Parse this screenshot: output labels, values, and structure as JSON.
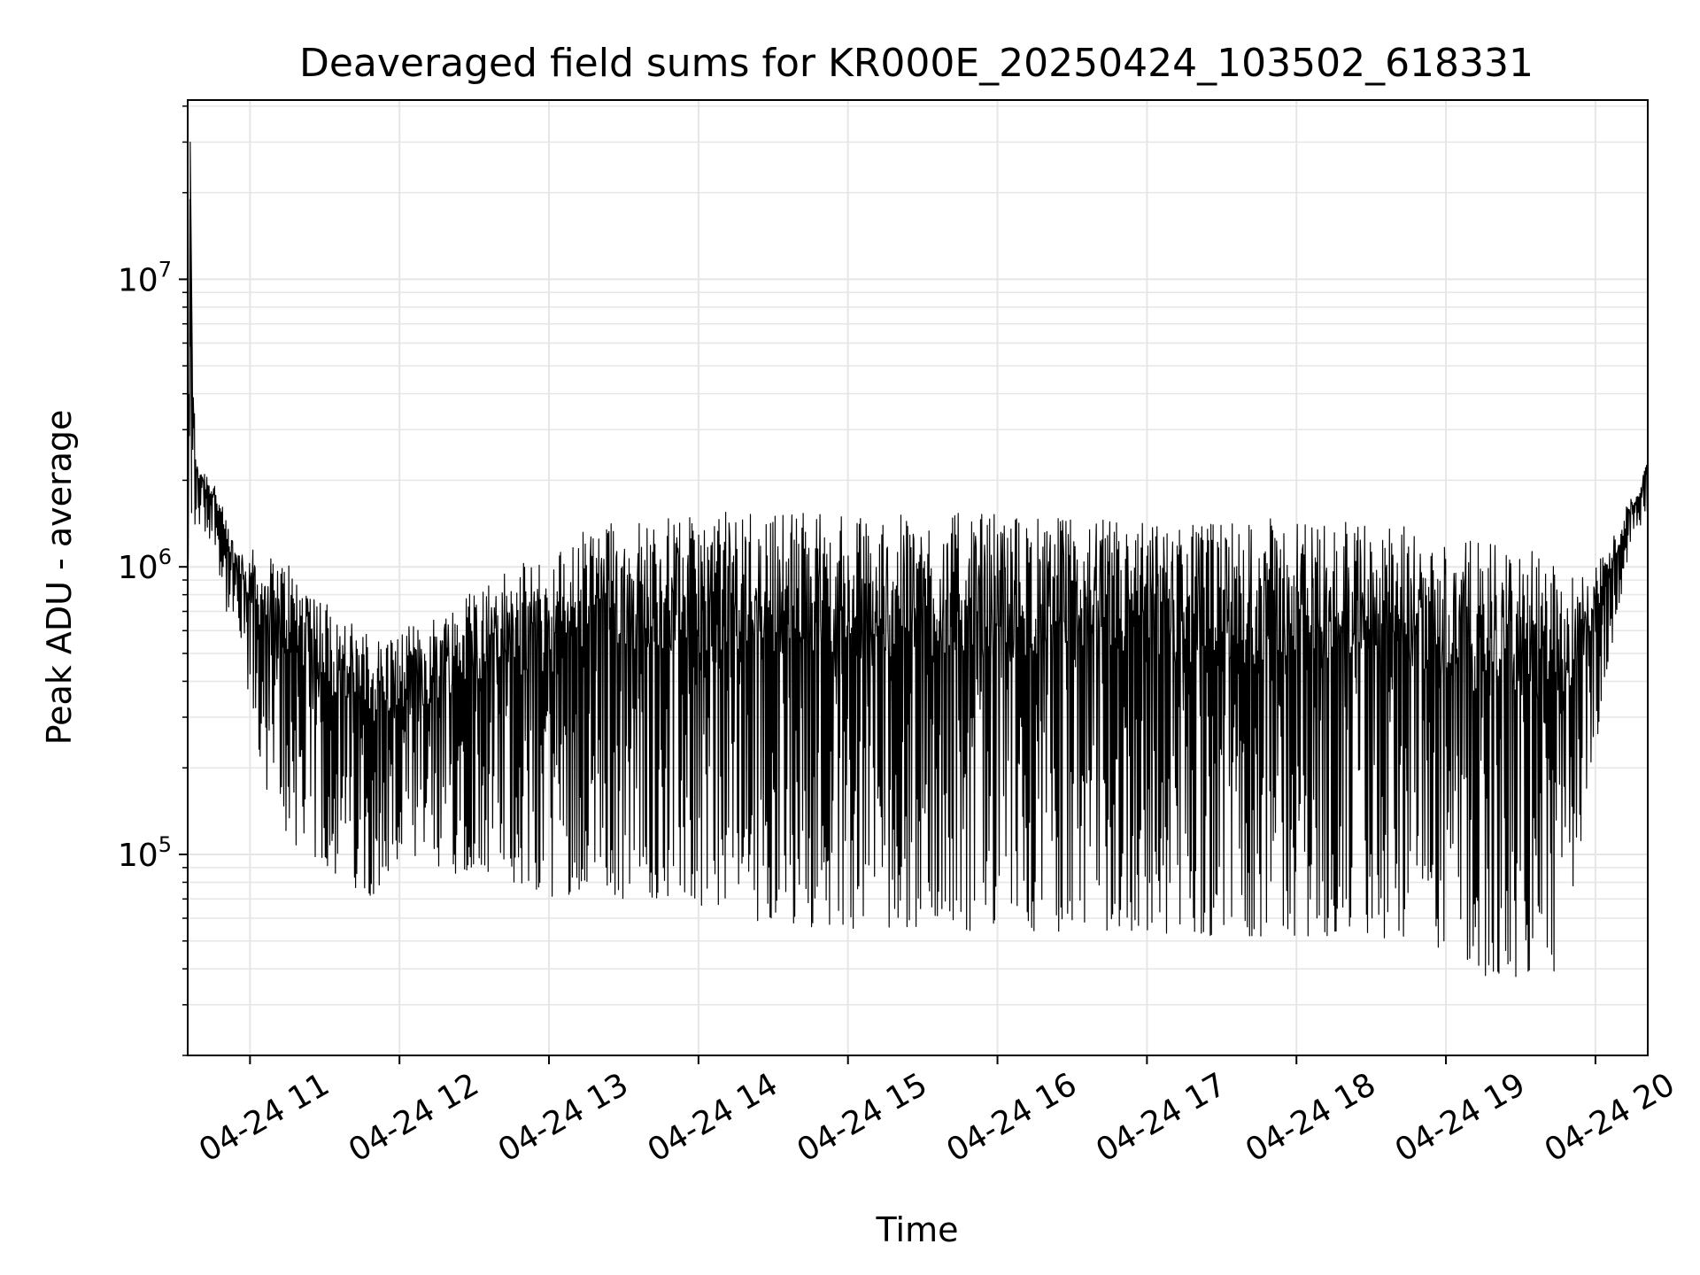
{
  "chart_data": {
    "type": "line",
    "title": "Deaveraged field sums for KR000E_20250424_103502_618331",
    "xlabel": "Time",
    "ylabel": "Peak ADU - average",
    "xlim": [
      "2025-04-24 10:35",
      "2025-04-24 20:21"
    ],
    "ylim": [
      20000,
      42000000
    ],
    "yscale": "log",
    "grid": true,
    "line_color": "#000000",
    "x_ticks": [
      {
        "time": "2025-04-24 11:00",
        "label": "04-24 11"
      },
      {
        "time": "2025-04-24 12:00",
        "label": "04-24 12"
      },
      {
        "time": "2025-04-24 13:00",
        "label": "04-24 13"
      },
      {
        "time": "2025-04-24 14:00",
        "label": "04-24 14"
      },
      {
        "time": "2025-04-24 15:00",
        "label": "04-24 15"
      },
      {
        "time": "2025-04-24 16:00",
        "label": "04-24 16"
      },
      {
        "time": "2025-04-24 17:00",
        "label": "04-24 17"
      },
      {
        "time": "2025-04-24 18:00",
        "label": "04-24 18"
      },
      {
        "time": "2025-04-24 19:00",
        "label": "04-24 19"
      },
      {
        "time": "2025-04-24 20:00",
        "label": "04-24 20"
      }
    ],
    "y_ticks": [
      {
        "value": 100000,
        "base": "10",
        "exp": "5"
      },
      {
        "value": 1000000,
        "base": "10",
        "exp": "6"
      },
      {
        "value": 10000000,
        "base": "10",
        "exp": "7"
      }
    ],
    "series": [
      {
        "x": [
          "2025-04-24 10:35",
          "2025-04-24 10:36",
          "2025-04-24 10:38",
          "2025-04-24 10:42",
          "2025-04-24 10:46",
          "2025-04-24 10:50",
          "2025-04-24 10:54",
          "2025-04-24 10:58",
          "2025-04-24 11:05",
          "2025-04-24 11:15",
          "2025-04-24 11:30",
          "2025-04-24 11:45",
          "2025-04-24 12:00",
          "2025-04-24 12:15",
          "2025-04-24 12:30",
          "2025-04-24 12:45",
          "2025-04-24 13:00",
          "2025-04-24 13:15",
          "2025-04-24 13:30",
          "2025-04-24 13:45",
          "2025-04-24 14:00",
          "2025-04-24 14:15",
          "2025-04-24 14:30",
          "2025-04-24 14:45",
          "2025-04-24 15:00",
          "2025-04-24 15:30",
          "2025-04-24 16:00",
          "2025-04-24 16:30",
          "2025-04-24 17:00",
          "2025-04-24 17:30",
          "2025-04-24 18:00",
          "2025-04-24 18:30",
          "2025-04-24 19:00",
          "2025-04-24 19:15",
          "2025-04-24 19:30",
          "2025-04-24 19:45",
          "2025-04-24 19:55",
          "2025-04-24 20:05",
          "2025-04-24 20:15",
          "2025-04-24 20:21"
        ],
        "high": [
          1200000,
          30000000,
          2500000,
          2200000,
          2000000,
          1500000,
          1200000,
          1200000,
          1100000,
          1100000,
          800000,
          600000,
          600000,
          700000,
          900000,
          1000000,
          1100000,
          1400000,
          1500000,
          1500000,
          1500000,
          1600000,
          1600000,
          1600000,
          1500000,
          1550000,
          1550000,
          1500000,
          1450000,
          1450000,
          1500000,
          1450000,
          1300000,
          1200000,
          1200000,
          1000000,
          950000,
          1200000,
          1800000,
          2300000
        ],
        "low": [
          420000,
          700000,
          1400000,
          1300000,
          1200000,
          700000,
          600000,
          400000,
          180000,
          110000,
          90000,
          70000,
          80000,
          80000,
          90000,
          80000,
          70000,
          75000,
          70000,
          70000,
          65000,
          60000,
          58000,
          56000,
          55000,
          55000,
          54000,
          54000,
          53000,
          52000,
          52000,
          50000,
          45000,
          38000,
          35000,
          38000,
          120000,
          450000,
          1300000,
          1500000
        ]
      }
    ]
  }
}
